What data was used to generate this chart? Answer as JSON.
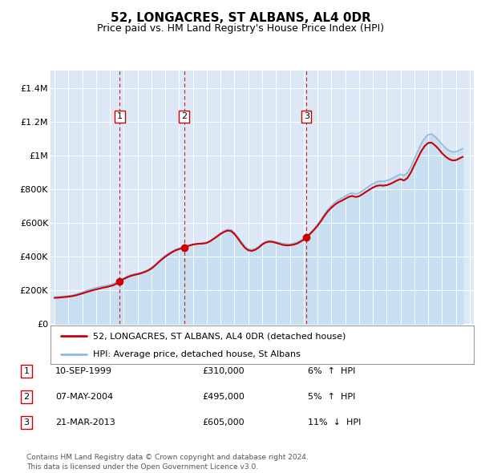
{
  "title": "52, LONGACRES, ST ALBANS, AL4 0DR",
  "subtitle": "Price paid vs. HM Land Registry's House Price Index (HPI)",
  "ylim": [
    0,
    1500000
  ],
  "yticks": [
    0,
    200000,
    400000,
    600000,
    800000,
    1000000,
    1200000,
    1400000
  ],
  "ytick_labels": [
    "£0",
    "£200K",
    "£400K",
    "£600K",
    "£800K",
    "£1M",
    "£1.2M",
    "£1.4M"
  ],
  "plot_bg_color": "#dce8f5",
  "hpi_color": "#90b8e0",
  "hpi_fill_color": "#c8dff2",
  "price_color": "#cc0000",
  "vline_color": "#cc0000",
  "legend_line1": "52, LONGACRES, ST ALBANS, AL4 0DR (detached house)",
  "legend_line2": "HPI: Average price, detached house, St Albans",
  "sales": [
    {
      "num": 1,
      "date": "10-SEP-1999",
      "price": 310000,
      "pct": "6%",
      "dir": "↑",
      "year": 1999.7
    },
    {
      "num": 2,
      "date": "07-MAY-2004",
      "price": 495000,
      "pct": "5%",
      "dir": "↑",
      "year": 2004.35
    },
    {
      "num": 3,
      "date": "21-MAR-2013",
      "price": 605000,
      "pct": "11%",
      "dir": "↓",
      "year": 2013.2
    }
  ],
  "footer1": "Contains HM Land Registry data © Crown copyright and database right 2024.",
  "footer2": "This data is licensed under the Open Government Licence v3.0.",
  "hpi_data_x": [
    1995,
    1995.25,
    1995.5,
    1995.75,
    1996,
    1996.25,
    1996.5,
    1996.75,
    1997,
    1997.25,
    1997.5,
    1997.75,
    1998,
    1998.25,
    1998.5,
    1998.75,
    1999,
    1999.25,
    1999.5,
    1999.75,
    2000,
    2000.25,
    2000.5,
    2000.75,
    2001,
    2001.25,
    2001.5,
    2001.75,
    2002,
    2002.25,
    2002.5,
    2002.75,
    2003,
    2003.25,
    2003.5,
    2003.75,
    2004,
    2004.25,
    2004.5,
    2004.75,
    2005,
    2005.25,
    2005.5,
    2005.75,
    2006,
    2006.25,
    2006.5,
    2006.75,
    2007,
    2007.25,
    2007.5,
    2007.75,
    2008,
    2008.25,
    2008.5,
    2008.75,
    2009,
    2009.25,
    2009.5,
    2009.75,
    2010,
    2010.25,
    2010.5,
    2010.75,
    2011,
    2011.25,
    2011.5,
    2011.75,
    2012,
    2012.25,
    2012.5,
    2012.75,
    2013,
    2013.25,
    2013.5,
    2013.75,
    2014,
    2014.25,
    2014.5,
    2014.75,
    2015,
    2015.25,
    2015.5,
    2015.75,
    2016,
    2016.25,
    2016.5,
    2016.75,
    2017,
    2017.25,
    2017.5,
    2017.75,
    2018,
    2018.25,
    2018.5,
    2018.75,
    2019,
    2019.25,
    2019.5,
    2019.75,
    2020,
    2020.25,
    2020.5,
    2020.75,
    2021,
    2021.25,
    2021.5,
    2021.75,
    2022,
    2022.25,
    2022.5,
    2022.75,
    2023,
    2023.25,
    2023.5,
    2023.75,
    2024,
    2024.25,
    2024.5
  ],
  "hpi_data_y": [
    160000,
    161000,
    163000,
    165000,
    167000,
    170000,
    175000,
    181000,
    188000,
    196000,
    203000,
    209000,
    215000,
    220000,
    224000,
    228000,
    233000,
    239000,
    248000,
    260000,
    272000,
    283000,
    291000,
    296000,
    300000,
    305000,
    312000,
    321000,
    334000,
    351000,
    371000,
    390000,
    406000,
    420000,
    432000,
    442000,
    449000,
    455000,
    462000,
    468000,
    473000,
    476000,
    478000,
    480000,
    484000,
    494000,
    509000,
    524000,
    539000,
    552000,
    560000,
    558000,
    540000,
    515000,
    486000,
    460000,
    444000,
    440000,
    446000,
    459000,
    476000,
    488000,
    493000,
    492000,
    487000,
    482000,
    477000,
    474000,
    474000,
    477000,
    483000,
    493000,
    506000,
    521000,
    542000,
    564000,
    589000,
    618000,
    650000,
    678000,
    700000,
    719000,
    735000,
    746000,
    758000,
    770000,
    777000,
    771000,
    776000,
    789000,
    804000,
    819000,
    831000,
    841000,
    847000,
    846000,
    850000,
    857000,
    867000,
    879000,
    888000,
    880000,
    896000,
    932000,
    978000,
    1024000,
    1068000,
    1102000,
    1122000,
    1126000,
    1110000,
    1090000,
    1065000,
    1044000,
    1029000,
    1020000,
    1020000,
    1030000,
    1040000
  ],
  "price_data_x": [
    1995,
    1995.25,
    1995.5,
    1995.75,
    1996,
    1996.25,
    1996.5,
    1996.75,
    1997,
    1997.25,
    1997.5,
    1997.75,
    1998,
    1998.25,
    1998.5,
    1998.75,
    1999,
    1999.25,
    1999.5,
    1999.75,
    2000,
    2000.25,
    2000.5,
    2000.75,
    2001,
    2001.25,
    2001.5,
    2001.75,
    2002,
    2002.25,
    2002.5,
    2002.75,
    2003,
    2003.25,
    2003.5,
    2003.75,
    2004,
    2004.25,
    2004.5,
    2004.75,
    2005,
    2005.25,
    2005.5,
    2005.75,
    2006,
    2006.25,
    2006.5,
    2006.75,
    2007,
    2007.25,
    2007.5,
    2007.75,
    2008,
    2008.25,
    2008.5,
    2008.75,
    2009,
    2009.25,
    2009.5,
    2009.75,
    2010,
    2010.25,
    2010.5,
    2010.75,
    2011,
    2011.25,
    2011.5,
    2011.75,
    2012,
    2012.25,
    2012.5,
    2012.75,
    2013,
    2013.25,
    2013.5,
    2013.75,
    2014,
    2014.25,
    2014.5,
    2014.75,
    2015,
    2015.25,
    2015.5,
    2015.75,
    2016,
    2016.25,
    2016.5,
    2016.75,
    2017,
    2017.25,
    2017.5,
    2017.75,
    2018,
    2018.25,
    2018.5,
    2018.75,
    2019,
    2019.25,
    2019.5,
    2019.75,
    2020,
    2020.25,
    2020.5,
    2020.75,
    2021,
    2021.25,
    2021.5,
    2021.75,
    2022,
    2022.25,
    2022.5,
    2022.75,
    2023,
    2023.25,
    2023.5,
    2023.75,
    2024,
    2024.25,
    2024.5
  ],
  "price_data_y": [
    155000,
    156000,
    158000,
    160000,
    162000,
    165000,
    169000,
    175000,
    181000,
    188000,
    194000,
    200000,
    205000,
    210000,
    215000,
    219000,
    224000,
    230000,
    240000,
    254000,
    267000,
    277000,
    285000,
    291000,
    295000,
    301000,
    308000,
    317000,
    329000,
    346000,
    365000,
    383000,
    399000,
    413000,
    426000,
    437000,
    444000,
    450000,
    458000,
    465000,
    471000,
    474000,
    476000,
    477000,
    481000,
    491000,
    505000,
    519000,
    534000,
    546000,
    554000,
    551000,
    533000,
    507000,
    478000,
    452000,
    437000,
    433000,
    440000,
    453000,
    471000,
    483000,
    488000,
    487000,
    481000,
    475000,
    469000,
    466000,
    467000,
    470000,
    476000,
    487000,
    500000,
    516000,
    537000,
    558000,
    582000,
    610000,
    641000,
    668000,
    689000,
    707000,
    721000,
    731000,
    742000,
    753000,
    759000,
    753000,
    757000,
    769000,
    783000,
    796000,
    808000,
    818000,
    822000,
    820000,
    823000,
    830000,
    840000,
    851000,
    859000,
    851000,
    865000,
    898000,
    941000,
    983000,
    1024000,
    1055000,
    1073000,
    1075000,
    1059000,
    1038000,
    1013000,
    993000,
    978000,
    970000,
    971000,
    981000,
    991000
  ]
}
